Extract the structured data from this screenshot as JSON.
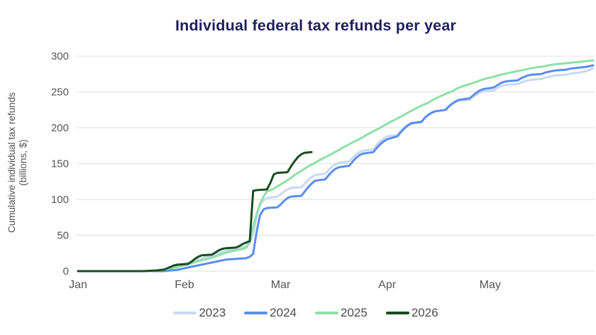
{
  "style": {
    "background": "#ffffff",
    "title_color": "#20205e",
    "axis_text_color": "#555555",
    "grid_color": "#e4e4e4"
  },
  "chart_data": {
    "type": "line",
    "title": "Individual federal tax refunds per year",
    "xlabel": "",
    "ylabel": "Cumulative individual tax refunds (billions, $)",
    "ylabel_lines": [
      "Cumulative individual tax refunds",
      "(billions, $)"
    ],
    "x_unit": "day_of_year",
    "xlim": [
      1,
      151
    ],
    "ylim": [
      0,
      300
    ],
    "yticks": [
      0,
      50,
      100,
      150,
      200,
      250,
      300
    ],
    "xticks": [
      {
        "label": "Jan",
        "day": 1
      },
      {
        "label": "Feb",
        "day": 32
      },
      {
        "label": "Mar",
        "day": 60
      },
      {
        "label": "Apr",
        "day": 91
      },
      {
        "label": "May",
        "day": 121
      }
    ],
    "grid": "horizontal",
    "legend_position": "bottom",
    "series": [
      {
        "name": "2023",
        "color": "#c9d9f6",
        "stroke_width": 3,
        "points": [
          [
            1,
            0
          ],
          [
            22,
            0
          ],
          [
            24,
            1
          ],
          [
            26,
            3
          ],
          [
            28,
            5
          ],
          [
            30,
            8
          ],
          [
            32,
            10
          ],
          [
            34,
            13
          ],
          [
            36,
            16
          ],
          [
            38,
            19
          ],
          [
            40,
            22
          ],
          [
            42,
            25
          ],
          [
            44,
            28
          ],
          [
            46,
            31
          ],
          [
            48,
            33
          ],
          [
            50,
            35
          ],
          [
            51,
            38
          ],
          [
            52,
            52
          ],
          [
            53,
            76
          ],
          [
            54,
            92
          ],
          [
            55,
            99
          ],
          [
            56,
            102
          ],
          [
            59,
            104
          ],
          [
            60,
            107
          ],
          [
            61,
            111
          ],
          [
            62,
            114
          ],
          [
            63,
            116
          ],
          [
            66,
            117
          ],
          [
            67,
            122
          ],
          [
            68,
            127
          ],
          [
            69,
            131
          ],
          [
            70,
            134
          ],
          [
            73,
            136
          ],
          [
            74,
            141
          ],
          [
            75,
            146
          ],
          [
            76,
            149
          ],
          [
            77,
            151
          ],
          [
            80,
            153
          ],
          [
            81,
            158
          ],
          [
            82,
            163
          ],
          [
            83,
            166
          ],
          [
            84,
            168
          ],
          [
            87,
            170
          ],
          [
            88,
            176
          ],
          [
            89,
            181
          ],
          [
            90,
            185
          ],
          [
            91,
            188
          ],
          [
            94,
            190
          ],
          [
            95,
            196
          ],
          [
            96,
            201
          ],
          [
            97,
            204
          ],
          [
            98,
            207
          ],
          [
            101,
            209
          ],
          [
            102,
            214
          ],
          [
            103,
            218
          ],
          [
            104,
            221
          ],
          [
            105,
            223
          ],
          [
            108,
            225
          ],
          [
            109,
            229
          ],
          [
            110,
            233
          ],
          [
            111,
            236
          ],
          [
            112,
            238
          ],
          [
            115,
            239
          ],
          [
            116,
            243
          ],
          [
            117,
            246
          ],
          [
            118,
            249
          ],
          [
            119,
            251
          ],
          [
            122,
            252
          ],
          [
            123,
            255
          ],
          [
            124,
            258
          ],
          [
            125,
            259
          ],
          [
            126,
            260
          ],
          [
            129,
            261
          ],
          [
            130,
            263
          ],
          [
            131,
            265
          ],
          [
            132,
            266
          ],
          [
            133,
            267
          ],
          [
            136,
            268
          ],
          [
            137,
            270
          ],
          [
            138,
            271
          ],
          [
            139,
            272
          ],
          [
            140,
            273
          ],
          [
            143,
            274
          ],
          [
            144,
            275
          ],
          [
            145,
            276
          ],
          [
            147,
            277
          ],
          [
            149,
            279
          ],
          [
            150,
            281
          ],
          [
            151,
            283
          ]
        ]
      },
      {
        "name": "2024",
        "color": "#5b8def",
        "stroke_width": 3,
        "points": [
          [
            1,
            0
          ],
          [
            26,
            0
          ],
          [
            28,
            1
          ],
          [
            30,
            2
          ],
          [
            32,
            4
          ],
          [
            34,
            6
          ],
          [
            36,
            8
          ],
          [
            38,
            10
          ],
          [
            40,
            12
          ],
          [
            42,
            14
          ],
          [
            44,
            16
          ],
          [
            47,
            17
          ],
          [
            50,
            18
          ],
          [
            51,
            20
          ],
          [
            52,
            24
          ],
          [
            53,
            55
          ],
          [
            54,
            78
          ],
          [
            55,
            86
          ],
          [
            56,
            88
          ],
          [
            59,
            89
          ],
          [
            60,
            93
          ],
          [
            61,
            98
          ],
          [
            62,
            102
          ],
          [
            63,
            104
          ],
          [
            66,
            105
          ],
          [
            67,
            111
          ],
          [
            68,
            117
          ],
          [
            69,
            122
          ],
          [
            70,
            126
          ],
          [
            73,
            128
          ],
          [
            74,
            134
          ],
          [
            75,
            139
          ],
          [
            76,
            143
          ],
          [
            77,
            145
          ],
          [
            80,
            147
          ],
          [
            81,
            153
          ],
          [
            82,
            158
          ],
          [
            83,
            162
          ],
          [
            84,
            164
          ],
          [
            87,
            166
          ],
          [
            88,
            172
          ],
          [
            89,
            177
          ],
          [
            90,
            181
          ],
          [
            91,
            184
          ],
          [
            94,
            188
          ],
          [
            95,
            194
          ],
          [
            96,
            199
          ],
          [
            97,
            203
          ],
          [
            98,
            206
          ],
          [
            101,
            208
          ],
          [
            102,
            214
          ],
          [
            103,
            218
          ],
          [
            104,
            221
          ],
          [
            105,
            223
          ],
          [
            108,
            225
          ],
          [
            109,
            230
          ],
          [
            110,
            234
          ],
          [
            111,
            237
          ],
          [
            112,
            239
          ],
          [
            115,
            241
          ],
          [
            116,
            245
          ],
          [
            117,
            249
          ],
          [
            118,
            252
          ],
          [
            119,
            254
          ],
          [
            122,
            256
          ],
          [
            123,
            259
          ],
          [
            124,
            262
          ],
          [
            125,
            264
          ],
          [
            126,
            265
          ],
          [
            129,
            266
          ],
          [
            130,
            269
          ],
          [
            131,
            271
          ],
          [
            132,
            273
          ],
          [
            133,
            274
          ],
          [
            136,
            275
          ],
          [
            137,
            277
          ],
          [
            138,
            278
          ],
          [
            139,
            279
          ],
          [
            140,
            280
          ],
          [
            143,
            281
          ],
          [
            144,
            282
          ],
          [
            145,
            283
          ],
          [
            147,
            284
          ],
          [
            149,
            285
          ],
          [
            150,
            286
          ],
          [
            151,
            287
          ]
        ]
      },
      {
        "name": "2025",
        "color": "#8fe0a6",
        "stroke_width": 3,
        "points": [
          [
            1,
            0
          ],
          [
            22,
            0
          ],
          [
            24,
            1
          ],
          [
            26,
            2
          ],
          [
            28,
            4
          ],
          [
            30,
            6
          ],
          [
            32,
            8
          ],
          [
            34,
            11
          ],
          [
            36,
            14
          ],
          [
            38,
            16
          ],
          [
            40,
            19
          ],
          [
            42,
            22
          ],
          [
            43,
            24
          ],
          [
            45,
            27
          ],
          [
            47,
            29
          ],
          [
            49,
            31
          ],
          [
            50,
            33
          ],
          [
            51,
            42
          ],
          [
            52,
            62
          ],
          [
            53,
            80
          ],
          [
            54,
            94
          ],
          [
            55,
            104
          ],
          [
            56,
            111
          ],
          [
            58,
            115
          ],
          [
            59,
            118
          ],
          [
            60,
            121
          ],
          [
            61,
            124
          ],
          [
            63,
            130
          ],
          [
            64,
            134
          ],
          [
            66,
            140
          ],
          [
            68,
            146
          ],
          [
            70,
            151
          ],
          [
            71,
            154
          ],
          [
            73,
            159
          ],
          [
            75,
            164
          ],
          [
            77,
            169
          ],
          [
            78,
            172
          ],
          [
            80,
            177
          ],
          [
            82,
            182
          ],
          [
            84,
            187
          ],
          [
            85,
            190
          ],
          [
            87,
            195
          ],
          [
            89,
            200
          ],
          [
            90,
            203
          ],
          [
            92,
            208
          ],
          [
            94,
            213
          ],
          [
            96,
            218
          ],
          [
            97,
            221
          ],
          [
            99,
            226
          ],
          [
            101,
            231
          ],
          [
            103,
            235
          ],
          [
            104,
            238
          ],
          [
            106,
            243
          ],
          [
            108,
            247
          ],
          [
            110,
            251
          ],
          [
            111,
            254
          ],
          [
            113,
            258
          ],
          [
            115,
            261
          ],
          [
            117,
            264
          ],
          [
            118,
            266
          ],
          [
            120,
            269
          ],
          [
            122,
            271
          ],
          [
            124,
            274
          ],
          [
            125,
            275
          ],
          [
            127,
            277
          ],
          [
            129,
            279
          ],
          [
            131,
            281
          ],
          [
            132,
            282
          ],
          [
            134,
            284
          ],
          [
            136,
            285
          ],
          [
            138,
            287
          ],
          [
            139,
            288
          ],
          [
            141,
            289
          ],
          [
            143,
            290
          ],
          [
            145,
            291
          ],
          [
            147,
            292
          ],
          [
            149,
            293
          ],
          [
            151,
            294
          ]
        ]
      },
      {
        "name": "2026",
        "color": "#1a4d20",
        "stroke_width": 3,
        "points": [
          [
            1,
            0
          ],
          [
            20,
            0
          ],
          [
            24,
            1
          ],
          [
            26,
            2
          ],
          [
            27,
            4
          ],
          [
            28,
            6
          ],
          [
            29,
            8
          ],
          [
            30,
            9
          ],
          [
            33,
            10
          ],
          [
            34,
            13
          ],
          [
            35,
            17
          ],
          [
            36,
            20
          ],
          [
            37,
            22
          ],
          [
            40,
            23
          ],
          [
            41,
            26
          ],
          [
            42,
            29
          ],
          [
            43,
            31
          ],
          [
            44,
            32
          ],
          [
            47,
            33
          ],
          [
            48,
            35
          ],
          [
            49,
            38
          ],
          [
            50,
            40
          ],
          [
            51,
            42
          ],
          [
            52,
            112
          ],
          [
            53,
            113
          ],
          [
            56,
            114
          ],
          [
            57,
            123
          ],
          [
            58,
            135
          ],
          [
            59,
            137
          ],
          [
            62,
            138
          ],
          [
            63,
            146
          ],
          [
            64,
            153
          ],
          [
            65,
            159
          ],
          [
            66,
            163
          ],
          [
            67,
            165
          ],
          [
            69,
            166
          ]
        ]
      }
    ]
  }
}
